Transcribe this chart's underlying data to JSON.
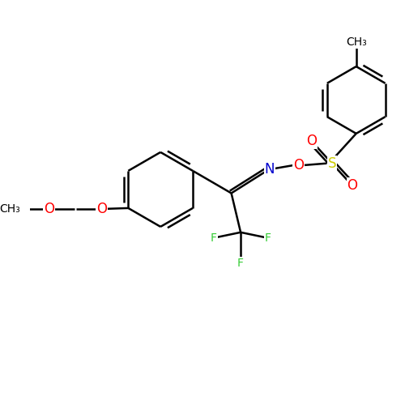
{
  "background_color": "#ffffff",
  "bond_color": "#000000",
  "bond_width": 1.8,
  "atom_colors": {
    "O": "#ff0000",
    "N": "#0000cd",
    "S": "#cccc00",
    "F": "#33cc33"
  },
  "font_size": 10,
  "fig_size": [
    5.0,
    5.0
  ],
  "dpi": 100,
  "xlim": [
    0,
    10
  ],
  "ylim": [
    0,
    10
  ]
}
